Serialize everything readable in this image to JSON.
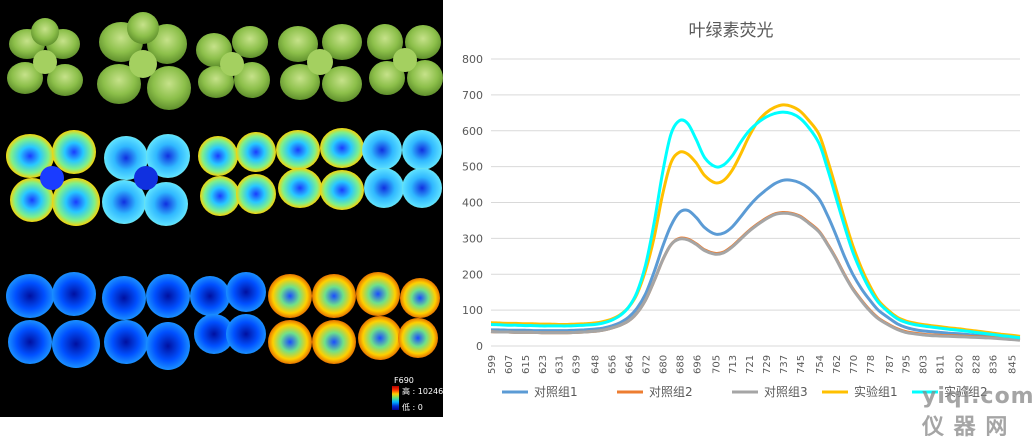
{
  "left_panel": {
    "colorbar": {
      "title": "F690",
      "high_label": "高 : 10246",
      "low_label": "低 : 0"
    }
  },
  "watermark": "yiqi.com 仪 器 网",
  "colors": {
    "series1": "#5B9BD5",
    "series2": "#ED7D31",
    "series3": "#A5A5A5",
    "series4": "#FFC000",
    "series5": "#00FFFF"
  },
  "chart_data": {
    "type": "line",
    "title": "叶绿素荧光",
    "xlabel": "",
    "ylabel": "",
    "ylim": [
      0,
      800
    ],
    "yticks": [
      0,
      100,
      200,
      300,
      400,
      500,
      600,
      700,
      800
    ],
    "grid": true,
    "legend": "bottom",
    "x": [
      599,
      603,
      607,
      611,
      615,
      619,
      623,
      627,
      631,
      635,
      639,
      643,
      648,
      652,
      656,
      660,
      664,
      668,
      672,
      676,
      680,
      684,
      688,
      692,
      696,
      700,
      705,
      709,
      713,
      717,
      721,
      725,
      729,
      733,
      737,
      741,
      745,
      749,
      754,
      758,
      762,
      766,
      770,
      774,
      778,
      782,
      787,
      791,
      795,
      799,
      803,
      807,
      811,
      815,
      820,
      824,
      828,
      832,
      836,
      840,
      845,
      849
    ],
    "x_tick_labels": [
      "599",
      "607",
      "615",
      "623",
      "631",
      "639",
      "648",
      "656",
      "664",
      "672",
      "680",
      "688",
      "696",
      "705",
      "713",
      "721",
      "729",
      "737",
      "745",
      "754",
      "762",
      "770",
      "778",
      "787",
      "795",
      "803",
      "811",
      "820",
      "828",
      "836",
      "845"
    ],
    "series": [
      {
        "name": "对照组1",
        "color": "#5B9BD5",
        "values": [
          45,
          45,
          44,
          44,
          44,
          43,
          43,
          43,
          43,
          43,
          44,
          45,
          47,
          50,
          56,
          65,
          80,
          105,
          145,
          205,
          275,
          335,
          372,
          378,
          358,
          330,
          312,
          315,
          332,
          360,
          390,
          415,
          435,
          452,
          462,
          462,
          455,
          440,
          410,
          365,
          310,
          250,
          200,
          160,
          128,
          100,
          78,
          62,
          52,
          46,
          42,
          40,
          38,
          36,
          34,
          32,
          30,
          28,
          26,
          24,
          22,
          20
        ]
      },
      {
        "name": "对照组2",
        "color": "#ED7D31",
        "values": [
          40,
          39,
          39,
          38,
          38,
          38,
          37,
          37,
          37,
          37,
          38,
          39,
          41,
          44,
          50,
          58,
          70,
          92,
          128,
          180,
          238,
          282,
          300,
          298,
          285,
          268,
          258,
          262,
          278,
          300,
          322,
          340,
          356,
          368,
          372,
          370,
          362,
          345,
          320,
          285,
          245,
          200,
          160,
          128,
          100,
          78,
          60,
          48,
          40,
          36,
          33,
          31,
          30,
          29,
          28,
          27,
          26,
          25,
          24,
          22,
          20,
          18
        ]
      },
      {
        "name": "对照组3",
        "color": "#A5A5A5",
        "values": [
          40,
          39,
          39,
          38,
          38,
          38,
          37,
          37,
          37,
          37,
          38,
          39,
          41,
          44,
          50,
          58,
          70,
          92,
          128,
          180,
          238,
          282,
          298,
          296,
          283,
          266,
          256,
          260,
          276,
          298,
          320,
          338,
          354,
          366,
          370,
          368,
          360,
          343,
          318,
          283,
          243,
          198,
          158,
          126,
          98,
          76,
          58,
          46,
          38,
          34,
          31,
          29,
          28,
          27,
          26,
          25,
          24,
          23,
          22,
          20,
          18,
          16
        ]
      },
      {
        "name": "实验组1",
        "color": "#FFC000",
        "values": [
          65,
          64,
          63,
          63,
          62,
          62,
          61,
          61,
          60,
          60,
          61,
          62,
          64,
          68,
          75,
          87,
          108,
          145,
          210,
          300,
          420,
          510,
          540,
          535,
          510,
          475,
          455,
          462,
          490,
          535,
          585,
          625,
          650,
          665,
          672,
          668,
          655,
          630,
          590,
          520,
          440,
          355,
          280,
          218,
          168,
          128,
          98,
          80,
          70,
          64,
          60,
          57,
          54,
          51,
          48,
          45,
          42,
          39,
          36,
          33,
          30,
          27
        ]
      },
      {
        "name": "实验组2",
        "color": "#00FFFF",
        "values": [
          60,
          59,
          58,
          58,
          57,
          57,
          56,
          56,
          56,
          56,
          57,
          58,
          60,
          64,
          72,
          85,
          108,
          150,
          225,
          340,
          480,
          590,
          628,
          620,
          575,
          525,
          500,
          505,
          530,
          568,
          600,
          622,
          638,
          648,
          652,
          648,
          635,
          610,
          565,
          495,
          415,
          335,
          262,
          205,
          158,
          122,
          94,
          76,
          66,
          60,
          56,
          53,
          50,
          47,
          44,
          41,
          38,
          35,
          32,
          29,
          26,
          23
        ]
      }
    ]
  }
}
